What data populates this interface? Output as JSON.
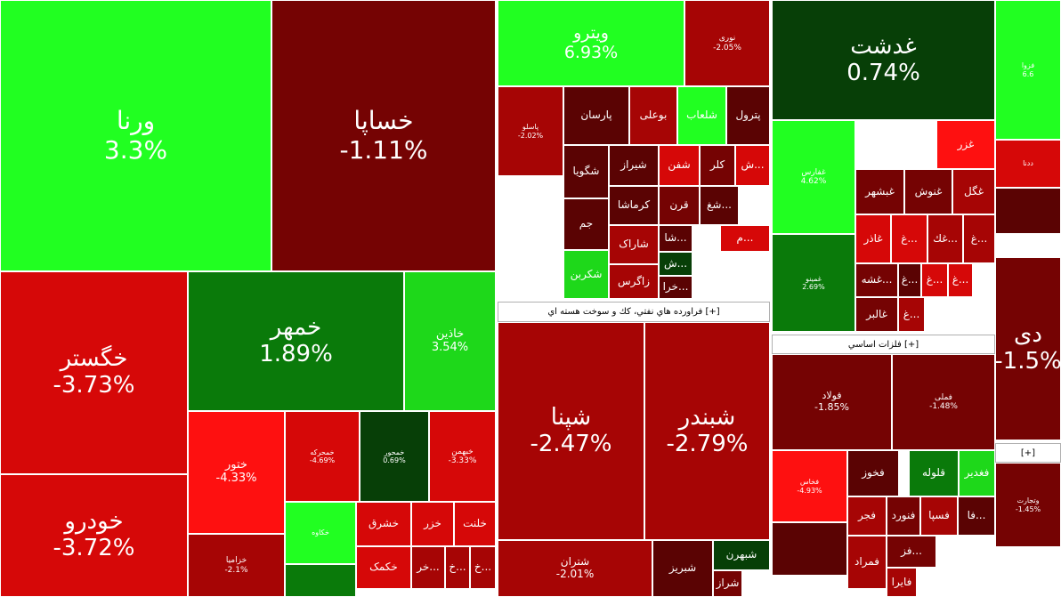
{
  "market_map": {
    "tiles": [
      {
        "name": "ورنا",
        "pct": "3.3%",
        "color": "#21ff21"
      },
      {
        "name": "خساپا",
        "pct": "-1.11%",
        "color": "#750303"
      },
      {
        "name": "خگستر",
        "pct": "-3.73%",
        "color": "#d60808"
      },
      {
        "name": "خودرو",
        "pct": "-3.72%",
        "color": "#d60808"
      },
      {
        "name": "خمهر",
        "pct": "1.89%",
        "color": "#0a7a0a"
      },
      {
        "name": "خاذین",
        "pct": "3.54%",
        "color": "#1ed81a"
      },
      {
        "name": "ختور",
        "pct": "-4.33%",
        "color": "#fe1010"
      },
      {
        "name": "خمحرکه",
        "pct": "-4.69%",
        "color": "#d60808"
      },
      {
        "name": "خمحور",
        "pct": "0.69%",
        "color": "#073f07"
      },
      {
        "name": "خبهمن",
        "pct": "-3.33%",
        "color": "#d60808"
      },
      {
        "name": "خکاوه",
        "pct": "",
        "color": "#21ff21"
      },
      {
        "name": "خشرق",
        "pct": "",
        "color": "#d60808"
      },
      {
        "name": "خزر",
        "pct": "",
        "color": "#d60808"
      },
      {
        "name": "خلنت",
        "pct": "",
        "color": "#d60808"
      },
      {
        "name": "خکمک",
        "pct": "",
        "color": "#d60808"
      },
      {
        "name": "خر...",
        "pct": "",
        "color": "#a60505"
      },
      {
        "name": "خ...",
        "pct": "",
        "color": "#a60505"
      },
      {
        "name": "خ...",
        "pct": "",
        "color": "#a60505"
      },
      {
        "name": "خزامیا",
        "pct": "-2.1%",
        "color": "#a60505"
      },
      {
        "name": "",
        "pct": "",
        "color": "#0a7a0a"
      },
      {
        "name": "ویترو",
        "pct": "6.93%",
        "color": "#21ff21"
      },
      {
        "name": "نوری",
        "pct": "-2.05%",
        "color": "#a60505"
      },
      {
        "name": "پترول",
        "pct": "",
        "color": "#5a0303"
      },
      {
        "name": "شلعاب",
        "pct": "",
        "color": "#21ff21"
      },
      {
        "name": "بوعلی",
        "pct": "",
        "color": "#a60505"
      },
      {
        "name": "پارسان",
        "pct": "",
        "color": "#5a0303"
      },
      {
        "name": "پاسلو",
        "pct": "-2.02%",
        "color": "#a60505"
      },
      {
        "name": "شگویا",
        "pct": "",
        "color": "#5a0303"
      },
      {
        "name": "شیراز",
        "pct": "",
        "color": "#5a0303"
      },
      {
        "name": "شفن",
        "pct": "",
        "color": "#d60808"
      },
      {
        "name": "کلر",
        "pct": "",
        "color": "#750303"
      },
      {
        "name": "ش...",
        "pct": "",
        "color": "#d60808"
      },
      {
        "name": "کرماشا",
        "pct": "",
        "color": "#5a0303"
      },
      {
        "name": "قرن",
        "pct": "",
        "color": "#750303"
      },
      {
        "name": "شغ...",
        "pct": "",
        "color": "#5a0303"
      },
      {
        "name": "جم",
        "pct": "",
        "color": "#5a0303"
      },
      {
        "name": "شاراک",
        "pct": "",
        "color": "#a60505"
      },
      {
        "name": "شا...",
        "pct": "",
        "color": "#5a0303"
      },
      {
        "name": "م...",
        "pct": "",
        "color": "#d60808"
      },
      {
        "name": "شکربن",
        "pct": "",
        "color": "#1ed81a"
      },
      {
        "name": "زاگرس",
        "pct": "",
        "color": "#a60505"
      },
      {
        "name": "ش...",
        "pct": "",
        "color": "#073f07"
      },
      {
        "name": "خرا...",
        "pct": "",
        "color": "#5a0303"
      },
      {
        "name": "شپنا",
        "pct": "-2.47%",
        "color": "#a60505"
      },
      {
        "name": "شبندر",
        "pct": "-2.79%",
        "color": "#a60505"
      },
      {
        "name": "شتران",
        "pct": "-2.01%",
        "color": "#a60505"
      },
      {
        "name": "شبریز",
        "pct": "",
        "color": "#5a0303"
      },
      {
        "name": "شبهرن",
        "pct": "",
        "color": "#073f07"
      },
      {
        "name": "شراز",
        "pct": "",
        "color": "#750303"
      },
      {
        "name": "غدشت",
        "pct": "0.74%",
        "color": "#073f07"
      },
      {
        "name": "غفارس",
        "pct": "4.62%",
        "color": "#21ff21"
      },
      {
        "name": "غمینو",
        "pct": "2.69%",
        "color": "#0a7a0a"
      },
      {
        "name": "غزر",
        "pct": "",
        "color": "#fe1010"
      },
      {
        "name": "غگل",
        "pct": "",
        "color": "#a60505"
      },
      {
        "name": "غنوش",
        "pct": "",
        "color": "#750303"
      },
      {
        "name": "غبشهر",
        "pct": "",
        "color": "#750303"
      },
      {
        "name": "غاذر",
        "pct": "",
        "color": "#d60808"
      },
      {
        "name": "غ...",
        "pct": "",
        "color": "#d60808"
      },
      {
        "name": "غك...",
        "pct": "",
        "color": "#a60505"
      },
      {
        "name": "غ...",
        "pct": "",
        "color": "#a60505"
      },
      {
        "name": "غشه...",
        "pct": "",
        "color": "#750303"
      },
      {
        "name": "غ...",
        "pct": "",
        "color": "#5a0303"
      },
      {
        "name": "غ...",
        "pct": "",
        "color": "#d60808"
      },
      {
        "name": "غ...",
        "pct": "",
        "color": "#d60808"
      },
      {
        "name": "غالبر",
        "pct": "",
        "color": "#750303"
      },
      {
        "name": "غ...",
        "pct": "",
        "color": "#a60505"
      },
      {
        "name": "فولاد",
        "pct": "-1.85%",
        "color": "#750303"
      },
      {
        "name": "فملی",
        "pct": "-1.48%",
        "color": "#750303"
      },
      {
        "name": "فخاس",
        "pct": "-4.93%",
        "color": "#fe1010"
      },
      {
        "name": "فخوز",
        "pct": "",
        "color": "#5a0303"
      },
      {
        "name": "قلوله",
        "pct": "",
        "color": "#0a7a0a"
      },
      {
        "name": "فغدیر",
        "pct": "",
        "color": "#1ed81a"
      },
      {
        "name": "فجر",
        "pct": "",
        "color": "#a60505"
      },
      {
        "name": "فنورد",
        "pct": "",
        "color": "#750303"
      },
      {
        "name": "فسپا",
        "pct": "",
        "color": "#a60505"
      },
      {
        "name": "فا...",
        "pct": "",
        "color": "#5a0303"
      },
      {
        "name": "فمراد",
        "pct": "",
        "color": "#a60505"
      },
      {
        "name": "فز...",
        "pct": "",
        "color": "#750303"
      },
      {
        "name": "فایرا",
        "pct": "",
        "color": "#a60505"
      },
      {
        "name": "",
        "pct": "",
        "color": "#5a0303"
      },
      {
        "name": "",
        "pct": "",
        "color": "#750303"
      },
      {
        "name": "سدبیر",
        "pct": "",
        "color": "#d60808"
      },
      {
        "name": "ددنا",
        "pct": "",
        "color": "#d60808"
      },
      {
        "name": "",
        "pct": "",
        "color": "#5a0303"
      },
      {
        "name": "فزوا",
        "pct": "6.6",
        "color": "#21ff21"
      },
      {
        "name": "دی",
        "pct": "-1.5%",
        "color": "#750303"
      },
      {
        "name": "وتجارت",
        "pct": "-1.45%",
        "color": "#750303"
      }
    ],
    "headers": [
      {
        "label": "فراورده هاي نفتي، كك و سوخت هسته اي [+]"
      },
      {
        "label": "فلزات اساسي [+]"
      },
      {
        "label": "[+]"
      }
    ]
  }
}
